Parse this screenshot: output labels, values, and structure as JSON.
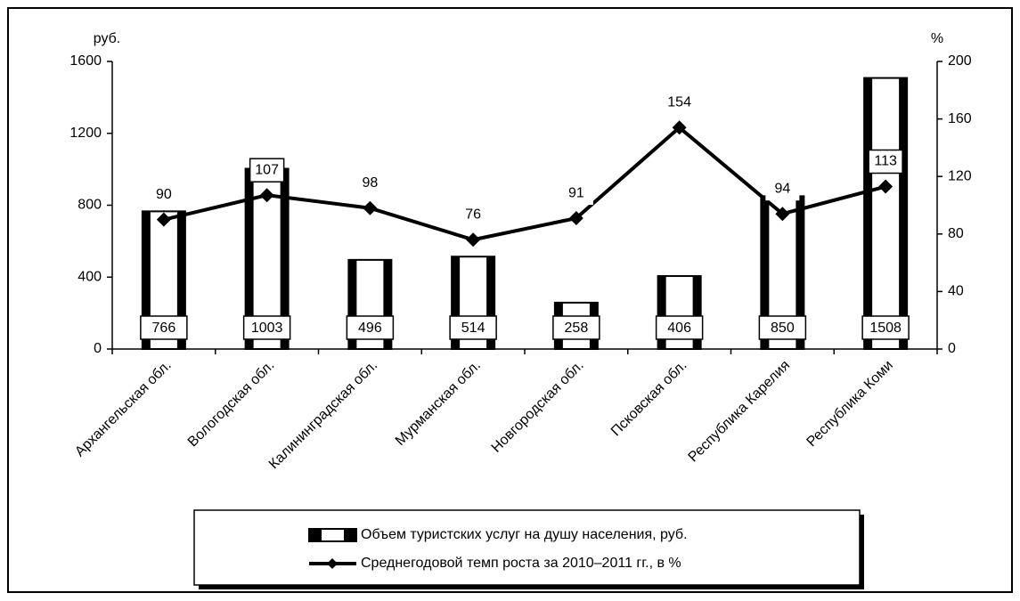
{
  "chart_data": {
    "type": "bar",
    "y_unit": "руб.",
    "y2_unit": "%",
    "categories": [
      "Архангельская обл.",
      "Вологодская обл.",
      "Калининградская обл.",
      "Мурманская обл.",
      "Новгородская обл.",
      "Псковская обл.",
      "Республика Карелия",
      "Республика Коми"
    ],
    "series": [
      {
        "name": "Объем туристских услуг на душу населения, руб.",
        "type": "bar",
        "color": "#000000",
        "values": [
          766,
          1003,
          496,
          514,
          258,
          406,
          850,
          1508
        ]
      },
      {
        "name": "Среднегодовой темп роста за 2010–2011 гг., в %",
        "type": "line",
        "axis": "y2",
        "color": "#000000",
        "values": [
          90,
          107,
          98,
          76,
          91,
          154,
          94,
          113
        ]
      }
    ],
    "ylim": [
      0,
      1600
    ],
    "yticks": [
      0,
      400,
      800,
      1200,
      1600
    ],
    "y2lim": [
      0,
      200
    ],
    "y2ticks": [
      0,
      40,
      80,
      120,
      160,
      200
    ],
    "legend": "bottom"
  }
}
